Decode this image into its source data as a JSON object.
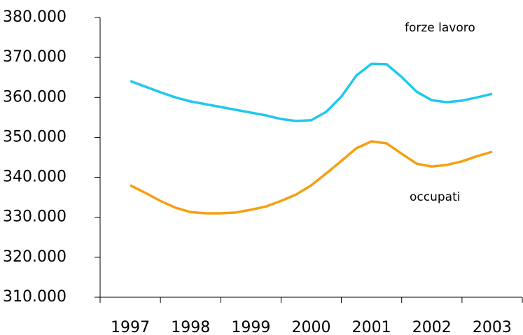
{
  "chart_data": {
    "type": "line",
    "x": [
      1997,
      1997.25,
      1997.5,
      1997.75,
      1998,
      1998.25,
      1998.5,
      1998.75,
      1999,
      1999.25,
      1999.5,
      1999.75,
      2000,
      2000.25,
      2000.5,
      2000.75,
      2001,
      2001.25,
      2001.5,
      2001.75,
      2002,
      2002.25,
      2002.5,
      2002.75,
      2003
    ],
    "xlim": [
      1996.5,
      2003.5
    ],
    "xticks": [
      1997,
      1998,
      1999,
      2000,
      2001,
      2002,
      2003
    ],
    "series": [
      {
        "name": "forze lavoro",
        "color": "#22c7ee",
        "values": [
          364100,
          362700,
          361300,
          360000,
          359000,
          358300,
          357600,
          356900,
          356200,
          355500,
          354600,
          354100,
          354300,
          356400,
          360200,
          365500,
          368400,
          368300,
          365100,
          361400,
          359300,
          358800,
          359200,
          360000,
          360900
        ]
      },
      {
        "name": "occupati",
        "color": "#f5a010",
        "values": [
          338000,
          336100,
          334100,
          332400,
          331300,
          331000,
          331000,
          331200,
          331900,
          332700,
          334100,
          335700,
          338000,
          341000,
          344100,
          347300,
          349000,
          348500,
          345900,
          343400,
          342700,
          343100,
          344000,
          345300,
          346400
        ]
      }
    ],
    "ylim": [
      310000,
      380000
    ],
    "yticks": [
      {
        "value": 310000,
        "label": "310.000"
      },
      {
        "value": 320000,
        "label": "320.000"
      },
      {
        "value": 330000,
        "label": "330.000"
      },
      {
        "value": 340000,
        "label": "340.000"
      },
      {
        "value": 350000,
        "label": "350.000"
      },
      {
        "value": 360000,
        "label": "360.000"
      },
      {
        "value": 370000,
        "label": "370.000"
      },
      {
        "value": 380000,
        "label": "380.000"
      }
    ],
    "grid": false
  }
}
